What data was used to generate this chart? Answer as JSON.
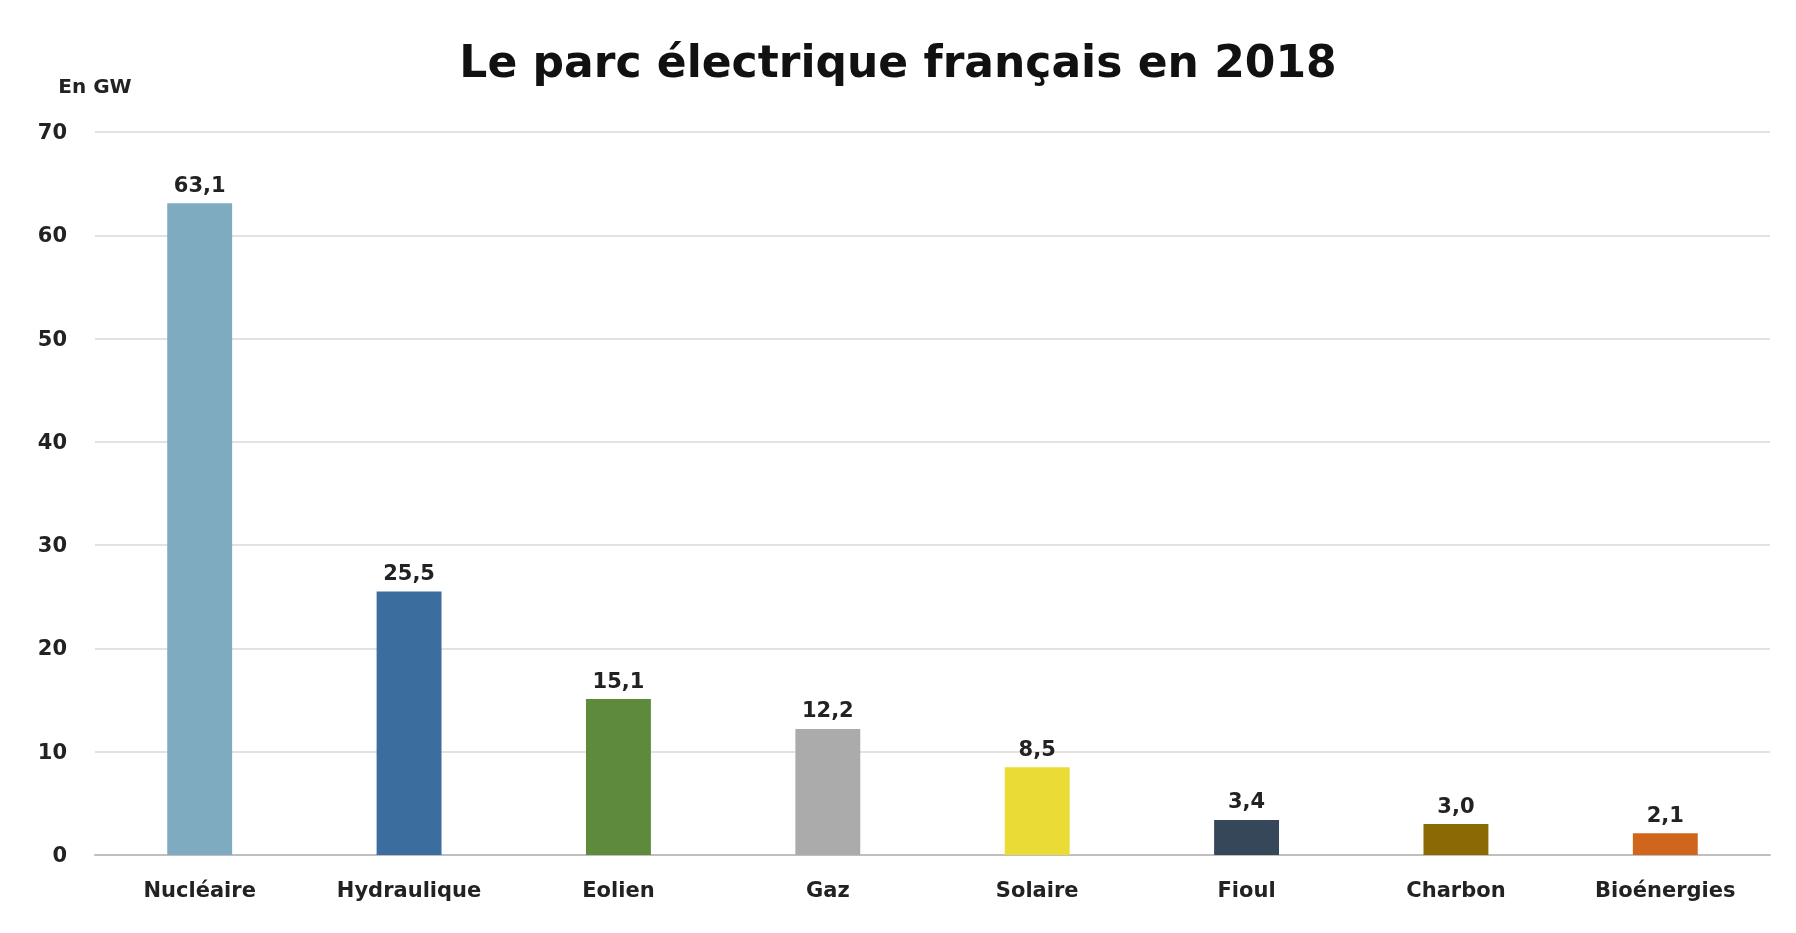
{
  "chart_data": {
    "type": "bar",
    "title": "Le parc électrique français en 2018",
    "ylabel": "En GW",
    "categories": [
      "Nucléaire",
      "Hydraulique",
      "Eolien",
      "Gaz",
      "Solaire",
      "Fioul",
      "Charbon",
      "Bioénergies"
    ],
    "values": [
      63.1,
      25.5,
      15.1,
      12.2,
      8.5,
      3.4,
      3.0,
      2.1
    ],
    "value_labels": [
      "63,1",
      "25,5",
      "15,1",
      "12,2",
      "8,5",
      "3,4",
      "3,0",
      "2,1"
    ],
    "colors": [
      "#7fabc0",
      "#3b6e9e",
      "#5e8a3c",
      "#ababab",
      "#ebdc35",
      "#37475a",
      "#8b6a05",
      "#d0661c"
    ],
    "ylim": [
      0,
      70
    ],
    "yticks": [
      0,
      10,
      20,
      30,
      40,
      50,
      60,
      70
    ],
    "grid": "y"
  }
}
